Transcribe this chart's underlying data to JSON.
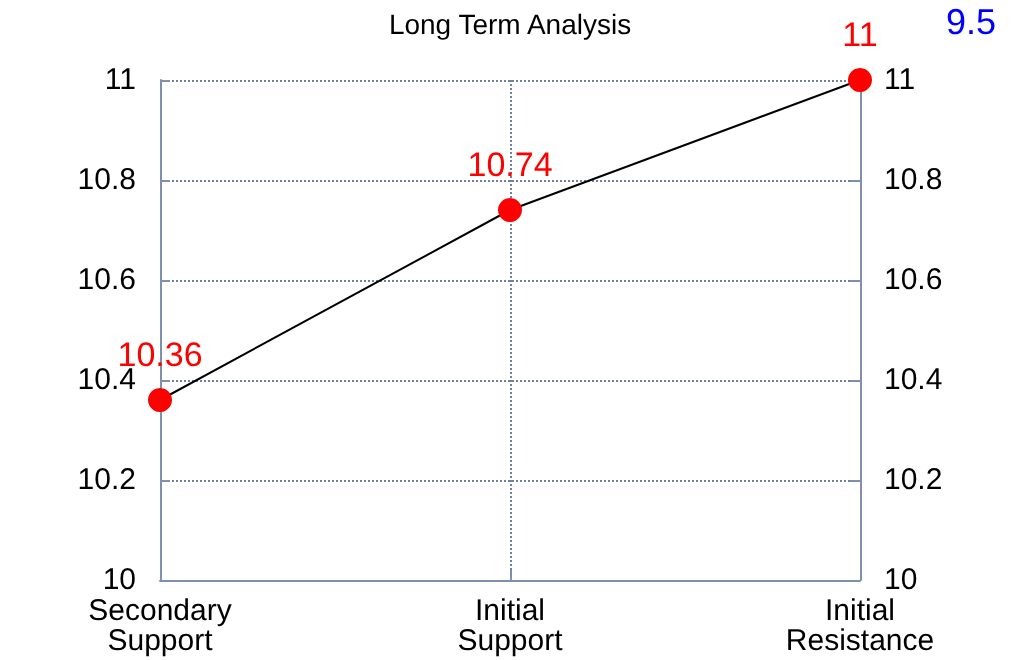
{
  "chart_data": {
    "type": "line",
    "title": "Long Term Analysis",
    "categories": [
      "Secondary\nSupport",
      "Initial\nSupport",
      "Initial\nResistance"
    ],
    "series": [
      {
        "color": "#000000",
        "colors": [
          "#ff0000",
          "#ff0000",
          "#ff0000"
        ],
        "values": [
          10.36,
          10.74,
          11
        ]
      }
    ],
    "ylim": [
      10,
      11
    ],
    "yticks": [
      10,
      10.2,
      10.4,
      10.6,
      10.8,
      11
    ],
    "y2lim": [
      10,
      11
    ],
    "y2ticks": [
      10,
      10.2,
      10.4,
      10.6,
      10.8,
      11
    ],
    "data_labels": true,
    "marker": "circle",
    "line_style": "solid",
    "grid": true,
    "annotations": [
      "9.5"
    ]
  }
}
